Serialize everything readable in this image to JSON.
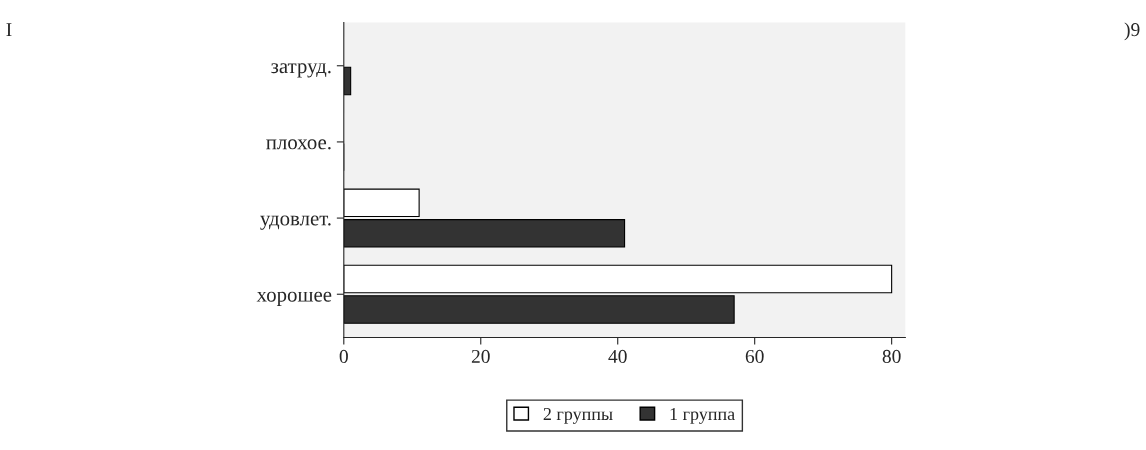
{
  "chart_data": {
    "type": "bar",
    "orientation": "horizontal",
    "categories": [
      "затруд.",
      "плохое.",
      "удовлет.",
      "хорошее"
    ],
    "series": [
      {
        "name": "2 группы",
        "color": "#ffffff",
        "values": [
          0,
          0,
          11,
          80
        ]
      },
      {
        "name": "1 группа",
        "color": "#333333",
        "values": [
          1,
          0,
          41,
          57
        ]
      }
    ],
    "xlim": [
      0,
      82
    ],
    "xticks": [
      0,
      20,
      40,
      60,
      80
    ],
    "grid": false,
    "legend": "bottom",
    "annotations": [
      "I",
      ")9"
    ]
  }
}
